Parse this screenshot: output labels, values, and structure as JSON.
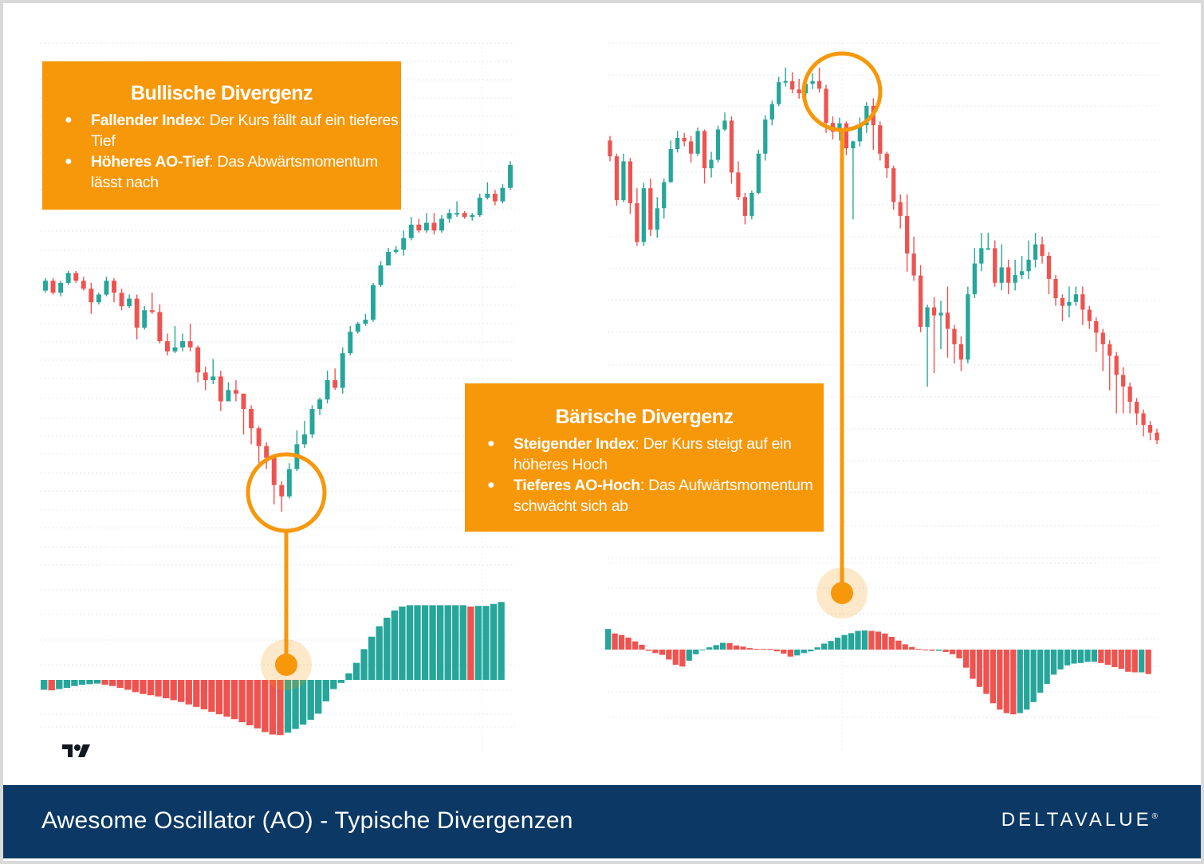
{
  "callouts": {
    "bull": {
      "title": "Bullische Divergenz",
      "items": [
        {
          "bold": "Fallender Index",
          "text": ": Der Kurs fällt auf ein tieferes Tief"
        },
        {
          "bold": "Höheres AO-Tief",
          "text": ": Das Abwärtsmomentum lässt nach"
        }
      ]
    },
    "bear": {
      "title": "Bärische Divergenz",
      "items": [
        {
          "bold": "Steigender Index",
          "text": ": Der Kurs steigt auf ein höheres Hoch"
        },
        {
          "bold": "Tieferes AO-Hoch",
          "text": ": Das Aufwärtsmomentum schwächt sich ab"
        }
      ]
    }
  },
  "footer": {
    "title": "Awesome Oscillator (AO) - Typische Divergenzen",
    "logo": "DELTAVALUE",
    "logo_mark": "®"
  },
  "colors": {
    "up": "#26a69a",
    "down": "#ef5350",
    "accent": "#f7970a",
    "footer": "#0b3864"
  },
  "icons": {
    "bullet": "●",
    "tv_logo": "tradingview-logo-icon"
  },
  "chart_data": [
    {
      "type": "candlestick",
      "panel": "bullish-price",
      "title": "",
      "xlabel": "",
      "ylabel": "",
      "ylim": [
        0,
        100
      ],
      "candles": [
        [
          62.9,
          65.6,
          62.3,
          66.3
        ],
        [
          65.6,
          62.3,
          61.8,
          66.3
        ],
        [
          62.3,
          65.0,
          61.3,
          65.6
        ],
        [
          65.0,
          67.7,
          64.4,
          68.3
        ],
        [
          67.7,
          65.6,
          65.0,
          68.3
        ],
        [
          65.6,
          63.4,
          62.9,
          66.7
        ],
        [
          63.4,
          59.7,
          56.5,
          65.0
        ],
        [
          59.7,
          61.8,
          59.1,
          62.3
        ],
        [
          61.8,
          65.6,
          61.3,
          66.7
        ],
        [
          65.6,
          62.3,
          59.7,
          66.3
        ],
        [
          62.3,
          58.6,
          57.5,
          63.4
        ],
        [
          58.6,
          60.7,
          58.1,
          61.8
        ],
        [
          60.7,
          52.7,
          49.5,
          61.8
        ],
        [
          52.7,
          57.5,
          52.2,
          58.6
        ],
        [
          57.5,
          57.0,
          56.5,
          62.3
        ],
        [
          57.0,
          49.0,
          48.4,
          59.1
        ],
        [
          49.0,
          46.2,
          45.1,
          51.1
        ],
        [
          46.2,
          47.3,
          45.7,
          53.2
        ],
        [
          47.3,
          49.0,
          46.2,
          51.1
        ],
        [
          49.0,
          47.3,
          46.2,
          53.8
        ],
        [
          47.3,
          40.4,
          37.7,
          47.8
        ],
        [
          40.4,
          38.3,
          35.6,
          42.0
        ],
        [
          38.3,
          39.3,
          37.2,
          44.1
        ],
        [
          39.3,
          32.5,
          29.8,
          40.9
        ],
        [
          32.5,
          35.6,
          33.5,
          37.7
        ],
        [
          35.6,
          34.6,
          32.5,
          38.3
        ],
        [
          34.6,
          30.4,
          23.4,
          34.6
        ],
        [
          30.4,
          25.1,
          20.7,
          31.4
        ],
        [
          25.1,
          20.2,
          15.5,
          25.6
        ],
        [
          20.2,
          17.0,
          13.9,
          21.3
        ],
        [
          17.0,
          9.5,
          4.2,
          17.5
        ],
        [
          9.5,
          6.4,
          2.2,
          10.6
        ],
        [
          6.4,
          13.9,
          5.8,
          15.5
        ],
        [
          13.9,
          20.7,
          13.3,
          24.5
        ],
        [
          20.7,
          23.4,
          19.7,
          27.1
        ],
        [
          23.4,
          30.4,
          22.4,
          31.4
        ],
        [
          30.4,
          33.0,
          28.7,
          33.5
        ],
        [
          33.0,
          38.3,
          31.9,
          40.9
        ],
        [
          38.3,
          36.2,
          35.6,
          41.5
        ],
        [
          36.2,
          45.7,
          34.6,
          47.3
        ],
        [
          45.7,
          51.6,
          45.1,
          53.2
        ],
        [
          51.6,
          53.8,
          51.1,
          54.3
        ],
        [
          53.8,
          54.9,
          53.2,
          56.5
        ],
        [
          54.9,
          64.4,
          54.3,
          65.0
        ],
        [
          64.4,
          69.8,
          63.9,
          71.0
        ],
        [
          69.8,
          73.5,
          69.8,
          74.6
        ],
        [
          73.5,
          74.1,
          73.0,
          75.1
        ],
        [
          74.1,
          77.3,
          72.5,
          79.4
        ],
        [
          77.3,
          81.0,
          76.7,
          83.1
        ],
        [
          81.0,
          79.4,
          78.8,
          82.6
        ],
        [
          79.4,
          81.5,
          78.8,
          84.2
        ],
        [
          81.5,
          79.4,
          78.3,
          84.2
        ],
        [
          79.4,
          82.6,
          78.8,
          83.6
        ],
        [
          82.6,
          84.2,
          81.5,
          85.2
        ],
        [
          84.2,
          84.2,
          83.1,
          87.4
        ],
        [
          84.2,
          83.1,
          82.6,
          84.7
        ],
        [
          83.1,
          83.6,
          82.1,
          84.2
        ],
        [
          83.6,
          88.4,
          83.1,
          89.5
        ],
        [
          88.4,
          89.5,
          87.9,
          92.6
        ],
        [
          89.5,
          87.4,
          86.3,
          90.5
        ],
        [
          87.4,
          91.1,
          86.8,
          92.1
        ],
        [
          91.1,
          97.4,
          90.5,
          98.4
        ]
      ]
    },
    {
      "type": "bar",
      "panel": "bullish-ao",
      "title": "",
      "xlabel": "",
      "ylabel": "",
      "ylim": [
        -10,
        14
      ],
      "values": [
        -1.6,
        -1.7,
        -1.5,
        -1.3,
        -1.0,
        -0.8,
        -0.7,
        -0.6,
        -0.8,
        -1.0,
        -1.3,
        -1.6,
        -2.0,
        -2.3,
        -2.5,
        -2.7,
        -3.0,
        -3.3,
        -3.6,
        -4.0,
        -4.4,
        -4.8,
        -5.2,
        -5.6,
        -6.0,
        -6.4,
        -6.9,
        -7.4,
        -7.9,
        -8.5,
        -8.9,
        -9.0,
        -8.6,
        -8.0,
        -7.3,
        -6.5,
        -5.5,
        -3.5,
        -1.5,
        -0.5,
        1.0,
        2.6,
        4.7,
        6.6,
        8.2,
        9.5,
        10.6,
        11.2,
        11.4,
        11.4,
        11.4,
        11.4,
        11.4,
        11.4,
        11.4,
        11.4,
        11.2,
        11.3,
        11.3,
        11.6,
        11.9
      ],
      "marker_index": 30
    },
    {
      "type": "candlestick",
      "panel": "bearish-price",
      "title": "",
      "xlabel": "",
      "ylabel": "",
      "ylim": [
        0,
        100
      ],
      "candles": [
        [
          80.0,
          75.9,
          74.6,
          81.2
        ],
        [
          75.9,
          64.5,
          63.1,
          76.6
        ],
        [
          64.5,
          74.6,
          64.0,
          76.6
        ],
        [
          74.6,
          63.7,
          60.9,
          75.5
        ],
        [
          63.7,
          53.6,
          52.6,
          67.6
        ],
        [
          53.6,
          67.6,
          52.6,
          69.0
        ],
        [
          67.6,
          56.8,
          55.2,
          70.1
        ],
        [
          56.8,
          62.4,
          54.7,
          65.3
        ],
        [
          62.4,
          69.2,
          59.7,
          70.1
        ],
        [
          69.2,
          77.8,
          69.0,
          80.0
        ],
        [
          77.8,
          80.7,
          76.9,
          82.5
        ],
        [
          80.7,
          79.8,
          78.5,
          82.0
        ],
        [
          79.8,
          76.6,
          74.3,
          81.2
        ],
        [
          76.6,
          82.5,
          76.0,
          83.4
        ],
        [
          82.5,
          72.8,
          68.8,
          82.9
        ],
        [
          72.8,
          75.0,
          70.4,
          77.1
        ],
        [
          75.0,
          82.9,
          74.3,
          83.9
        ],
        [
          82.9,
          85.2,
          82.5,
          87.3
        ],
        [
          85.2,
          71.7,
          68.8,
          86.3
        ],
        [
          71.7,
          65.3,
          64.5,
          74.6
        ],
        [
          65.3,
          60.4,
          58.2,
          66.4
        ],
        [
          60.4,
          66.4,
          59.5,
          67.0
        ],
        [
          66.4,
          76.6,
          66.0,
          77.6
        ],
        [
          76.6,
          85.5,
          74.8,
          86.6
        ],
        [
          85.5,
          89.5,
          84.0,
          90.4
        ],
        [
          89.5,
          95.2,
          89.0,
          96.6
        ],
        [
          95.2,
          95.5,
          94.1,
          99.0
        ],
        [
          95.5,
          93.3,
          92.3,
          97.8
        ],
        [
          93.3,
          92.3,
          90.9,
          96.1
        ],
        [
          92.3,
          94.8,
          89.3,
          96.4
        ],
        [
          94.8,
          95.5,
          93.4,
          97.5
        ],
        [
          95.5,
          93.5,
          92.5,
          99.0
        ],
        [
          93.5,
          84.6,
          82.0,
          94.5
        ],
        [
          84.6,
          82.3,
          80.3,
          86.3
        ],
        [
          82.3,
          84.5,
          80.0,
          86.0
        ],
        [
          84.5,
          78.0,
          76.2,
          85.0
        ],
        [
          78.0,
          79.8,
          59.5,
          80.0
        ],
        [
          79.8,
          84.0,
          78.5,
          86.0
        ],
        [
          84.0,
          89.0,
          82.0,
          90.0
        ],
        [
          89.0,
          84.0,
          77.6,
          91.0
        ],
        [
          84.0,
          76.6,
          74.8,
          85.0
        ],
        [
          76.6,
          72.8,
          70.3,
          77.1
        ],
        [
          72.8,
          64.0,
          62.0,
          73.5
        ],
        [
          64.0,
          60.4,
          57.1,
          66.0
        ],
        [
          60.4,
          50.6,
          45.9,
          66.0
        ],
        [
          50.6,
          44.9,
          43.5,
          55.0
        ],
        [
          44.9,
          31.5,
          30.1,
          47.6
        ],
        [
          31.5,
          36.6,
          15.9,
          37.3
        ],
        [
          36.6,
          34.5,
          19.5,
          39.3
        ],
        [
          34.5,
          35.2,
          25.7,
          38.3
        ],
        [
          35.2,
          31.0,
          23.5,
          42.0
        ],
        [
          31.0,
          27.0,
          22.0,
          32.0
        ],
        [
          27.0,
          23.0,
          20.0,
          29.0
        ],
        [
          23.0,
          40.0,
          22.0,
          42.0
        ],
        [
          40.0,
          48.0,
          39.0,
          52.0
        ],
        [
          48.0,
          52.0,
          46.0,
          56.0
        ],
        [
          52.0,
          52.0,
          52.0,
          56.0
        ],
        [
          52.0,
          43.0,
          42.0,
          54.0
        ],
        [
          43.0,
          47.0,
          41.0,
          53.0
        ],
        [
          47.0,
          43.0,
          40.0,
          49.0
        ],
        [
          43.0,
          45.0,
          41.0,
          49.0
        ],
        [
          45.0,
          46.0,
          44.0,
          50.0
        ],
        [
          46.0,
          49.0,
          44.0,
          54.0
        ],
        [
          49.0,
          53.0,
          47.0,
          56.0
        ],
        [
          53.0,
          50.0,
          48.0,
          55.0
        ],
        [
          50.0,
          44.0,
          40.0,
          51.0
        ],
        [
          44.0,
          39.0,
          37.0,
          45.0
        ],
        [
          39.0,
          37.0,
          33.0,
          40.0
        ],
        [
          37.0,
          38.0,
          34.0,
          42.0
        ],
        [
          38.0,
          40.0,
          37.0,
          42.0
        ],
        [
          40.0,
          36.0,
          32.0,
          42.0
        ],
        [
          36.0,
          33.0,
          31.0,
          37.0
        ],
        [
          33.0,
          30.0,
          25.0,
          34.0
        ],
        [
          30.0,
          27.0,
          20.0,
          31.0
        ],
        [
          27.0,
          24.0,
          15.0,
          28.0
        ],
        [
          24.0,
          19.0,
          9.0,
          25.0
        ],
        [
          19.0,
          16.0,
          9.0,
          21.0
        ],
        [
          16.0,
          12.0,
          9.0,
          17.0
        ],
        [
          12.0,
          9.0,
          6.0,
          13.0
        ],
        [
          9.0,
          6.0,
          3.0,
          10.0
        ],
        [
          6.0,
          4.0,
          2.0,
          7.0
        ],
        [
          4.0,
          2.0,
          1.0,
          5.0
        ]
      ]
    },
    {
      "type": "bar",
      "panel": "bearish-ao",
      "title": "",
      "xlabel": "",
      "ylabel": "",
      "ylim": [
        -16,
        10
      ],
      "values": [
        5.5,
        4.3,
        3.9,
        3.2,
        2.2,
        1.3,
        -0.2,
        -0.6,
        -0.9,
        -1.7,
        -2.6,
        -2.9,
        -1.9,
        -0.8,
        -0.1,
        0.6,
        1.2,
        1.8,
        1.7,
        1.1,
        0.8,
        0.4,
        0.2,
        0.1,
        0.0,
        -0.3,
        -0.7,
        -1.2,
        -1.0,
        -0.6,
        -0.3,
        0.6,
        1.6,
        2.3,
        3.2,
        3.9,
        4.4,
        5.0,
        5.1,
        5.0,
        4.8,
        4.3,
        3.4,
        2.4,
        1.4,
        0.7,
        0.2,
        -0.1,
        -0.2,
        -0.2,
        -0.4,
        -0.8,
        -1.5,
        -3.1,
        -5.0,
        -6.4,
        -7.6,
        -9.2,
        -10.3,
        -10.9,
        -11.1,
        -10.9,
        -10.3,
        -9.0,
        -7.4,
        -5.9,
        -4.3,
        -3.4,
        -2.7,
        -2.4,
        -2.3,
        -2.1,
        -2.1,
        -2.3,
        -2.6,
        -3.0,
        -3.3,
        -3.8,
        -3.9,
        -3.9,
        -4.2
      ]
    }
  ]
}
